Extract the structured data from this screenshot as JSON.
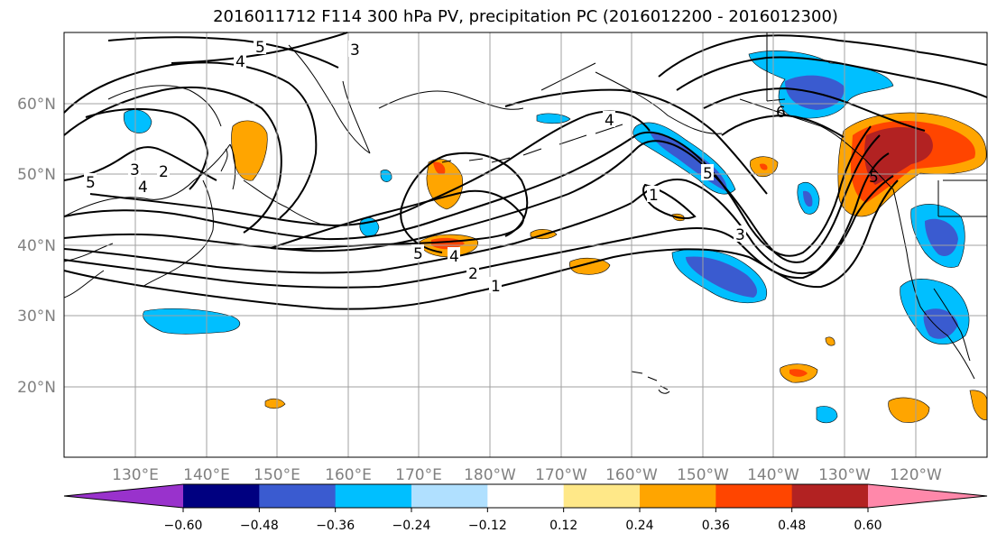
{
  "title": "2016011712 F114 300 hPa PV, precipitation PC (2016012200 - 2016012300)",
  "lon_labels": [
    "130°E",
    "140°E",
    "150°E",
    "160°E",
    "170°E",
    "180°W",
    "170°W",
    "160°W",
    "150°W",
    "140°W",
    "130°W",
    "120°W"
  ],
  "lat_labels": [
    "60°N",
    "50°N",
    "40°N",
    "30°N",
    "20°N"
  ],
  "colorbar": {
    "levels": [
      "−0.60",
      "−0.48",
      "−0.36",
      "−0.24",
      "−0.12",
      "0.12",
      "0.24",
      "0.36",
      "0.48",
      "0.60"
    ],
    "colors": [
      "#9932cc",
      "#000080",
      "#3a5bd0",
      "#00bfff",
      "#b0e0ff",
      "#ffffff",
      "#ffe888",
      "#ffa500",
      "#ff4500",
      "#b22222",
      "#ff88aa"
    ]
  },
  "contour_labels": [
    "5",
    "4",
    "3",
    "5",
    "3",
    "2",
    "5",
    "4",
    "5",
    "4",
    "2",
    "1",
    "4",
    "1",
    "5",
    "3",
    "6"
  ]
}
